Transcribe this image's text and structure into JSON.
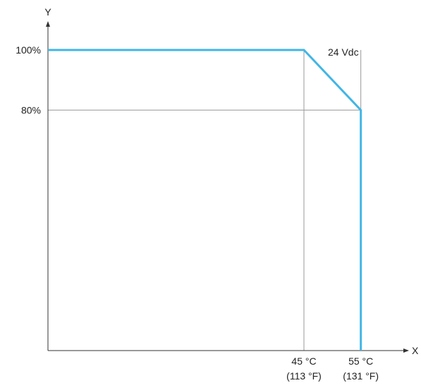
{
  "chart_data": {
    "type": "line",
    "xlabel": "X",
    "ylabel": "Y",
    "x_ticks": [
      {
        "value": 45,
        "label": "45 °C",
        "sublabel": "(113 °F)"
      },
      {
        "value": 55,
        "label": "55 °C",
        "sublabel": "(131 °F)"
      }
    ],
    "y_ticks": [
      {
        "value": 100,
        "label": "100%"
      },
      {
        "value": 80,
        "label": "80%"
      }
    ],
    "series": [
      {
        "name": "24 Vdc",
        "color": "#41b6e6",
        "points": [
          {
            "x": 0,
            "y": 100
          },
          {
            "x": 45,
            "y": 100
          },
          {
            "x": 55,
            "y": 80
          },
          {
            "x": 55,
            "y": 0
          }
        ]
      }
    ],
    "xlim": [
      0,
      60
    ],
    "ylim": [
      0,
      120
    ],
    "grid": false,
    "reference_line_color": "#999999",
    "axis_color": "#333333"
  }
}
